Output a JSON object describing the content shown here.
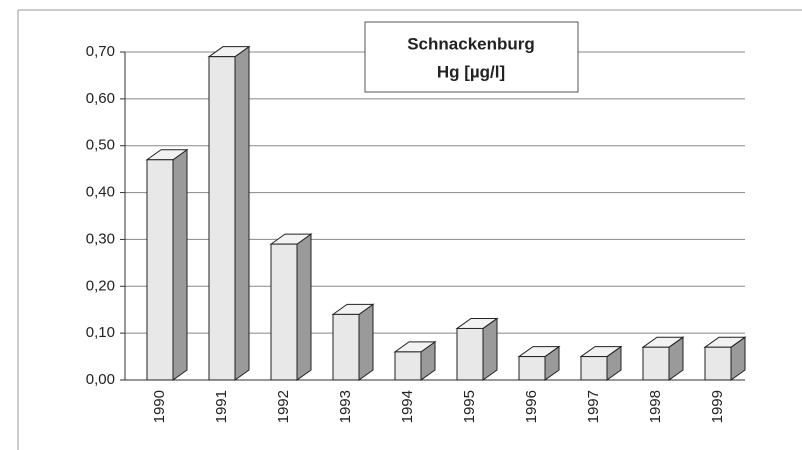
{
  "chart_data": {
    "type": "bar3d",
    "title": "Schnackenburg",
    "subtitle": "Hg [µg/l]",
    "categories": [
      "1990",
      "1991",
      "1992",
      "1993",
      "1994",
      "1995",
      "1996",
      "1997",
      "1998",
      "1999"
    ],
    "values": [
      0.47,
      0.69,
      0.29,
      0.14,
      0.06,
      0.11,
      0.05,
      0.05,
      0.07,
      0.07
    ],
    "color": "#e8e8e8",
    "ylim": [
      0,
      0.7
    ],
    "yticks": [
      {
        "value": 0,
        "label": "0,00"
      },
      {
        "value": 0.1,
        "label": "0,10"
      },
      {
        "value": 0.2,
        "label": "0,20"
      },
      {
        "value": 0.3,
        "label": "0,30"
      },
      {
        "value": 0.4,
        "label": "0,40"
      },
      {
        "value": 0.5,
        "label": "0,50"
      },
      {
        "value": 0.6,
        "label": "0,60"
      },
      {
        "value": 0.7,
        "label": "0,70"
      }
    ],
    "grid": true
  }
}
